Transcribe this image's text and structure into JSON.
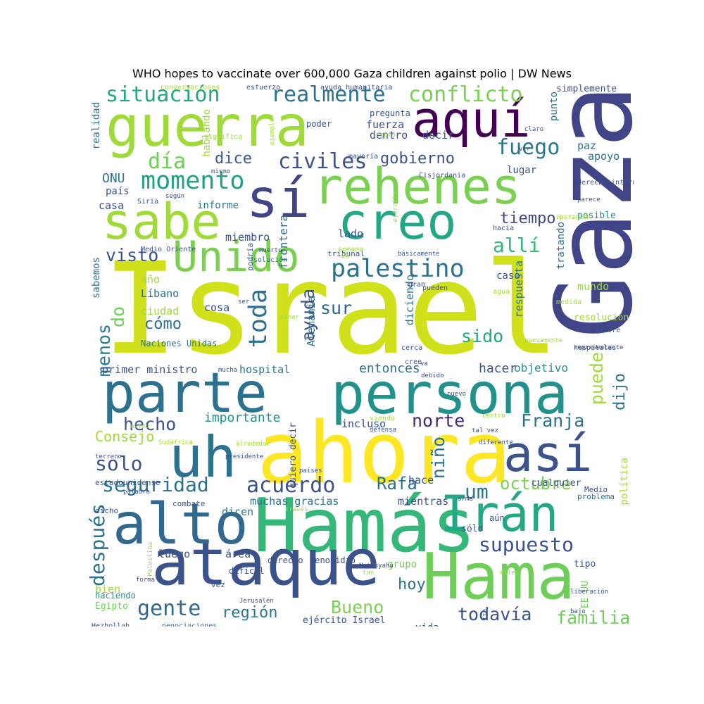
{
  "title": "WHO hopes to vaccinate over 600,000 Gaza children against polio | DW News",
  "words": [
    {
      "t": "Israel",
      "c": "#d0e11c"
    },
    {
      "t": "Gaza",
      "c": "#414487"
    },
    {
      "t": "ahora",
      "c": "#fde725"
    },
    {
      "t": "Hamás",
      "c": "#35b779"
    },
    {
      "t": "Hama",
      "c": "#6ece58"
    },
    {
      "t": "ataque",
      "c": "#3b528b"
    },
    {
      "t": "persona",
      "c": "#21918c"
    },
    {
      "t": "parte",
      "c": "#2c728e"
    },
    {
      "t": "guerra",
      "c": "#a0da39"
    },
    {
      "t": "aquí",
      "c": "#440154"
    },
    {
      "t": "rehenes",
      "c": "#7ad151"
    },
    {
      "t": "sabe",
      "c": "#a0da39"
    },
    {
      "t": "creo",
      "c": "#22a884"
    },
    {
      "t": "sí",
      "c": "#414487"
    },
    {
      "t": "Unido",
      "c": "#7ad151"
    },
    {
      "t": "uh",
      "c": "#2c728e"
    },
    {
      "t": "así",
      "c": "#3b528b"
    },
    {
      "t": "alto",
      "c": "#31688e"
    },
    {
      "t": "Irán",
      "c": "#22a884"
    },
    {
      "t": "palestino",
      "c": "#2c728e"
    },
    {
      "t": "realmente",
      "c": "#2c728e"
    },
    {
      "t": "conflicto",
      "c": "#7ad151"
    },
    {
      "t": "situación",
      "c": "#22a884"
    },
    {
      "t": "momento",
      "c": "#1fa187"
    },
    {
      "t": "civiles",
      "c": "#3b528b"
    },
    {
      "t": "fuego",
      "c": "#2a788e"
    },
    {
      "t": "gobierno",
      "c": "#3b528b"
    },
    {
      "t": "día",
      "c": "#6ece58"
    },
    {
      "t": "dice",
      "c": "#38598c"
    },
    {
      "t": "allí",
      "c": "#35b779"
    },
    {
      "t": "tiempo",
      "c": "#404688"
    },
    {
      "t": "visto",
      "c": "#3b528b"
    },
    {
      "t": "toda",
      "c": "#2c728e"
    },
    {
      "t": "ayuda",
      "c": "#3b528b"
    },
    {
      "t": "sur",
      "c": "#31688e"
    },
    {
      "t": "do",
      "c": "#6ece58"
    },
    {
      "t": "cómo",
      "c": "#2c728e"
    },
    {
      "t": "sido",
      "c": "#22a884"
    },
    {
      "t": "menos",
      "c": "#2a788e"
    },
    {
      "t": "hecho",
      "c": "#3b528b"
    },
    {
      "t": "Franja",
      "c": "#2c728e"
    },
    {
      "t": "norte",
      "c": "#482878"
    },
    {
      "t": "solo",
      "c": "#3b528b"
    },
    {
      "t": "seguridad",
      "c": "#2c728e"
    },
    {
      "t": "acuerdo",
      "c": "#3b528b"
    },
    {
      "t": "Rafa",
      "c": "#2c728e"
    },
    {
      "t": "octubre",
      "c": "#7ad151"
    },
    {
      "t": "um",
      "c": "#2c728e"
    },
    {
      "t": "supuesto",
      "c": "#3b528b"
    },
    {
      "t": "después",
      "c": "#2c728e"
    },
    {
      "t": "gente",
      "c": "#31688e"
    },
    {
      "t": "región",
      "c": "#2a788e"
    },
    {
      "t": "Bueno",
      "c": "#7ad151"
    },
    {
      "t": "hoy",
      "c": "#2c728e"
    },
    {
      "t": "todavía",
      "c": "#3b528b"
    },
    {
      "t": "familia",
      "c": "#6ece58"
    },
    {
      "t": "puede",
      "c": "#a0da39"
    },
    {
      "t": "dijo",
      "c": "#2c728e"
    },
    {
      "t": "importante",
      "c": "#21918c"
    },
    {
      "t": "entonces",
      "c": "#2c728e"
    },
    {
      "t": "hacer",
      "c": "#3b528b"
    },
    {
      "t": "objetivo",
      "c": "#21918c"
    },
    {
      "t": "Consejo",
      "c": "#a0da39"
    },
    {
      "t": "niño",
      "c": "#2c728e"
    },
    {
      "t": "incluso",
      "c": "#3b528b"
    },
    {
      "t": "primer ministro",
      "c": "#3b528b"
    },
    {
      "t": "hospital",
      "c": "#2c728e"
    },
    {
      "t": "ONU",
      "c": "#2c728e"
    },
    {
      "t": "país",
      "c": "#3b528b"
    },
    {
      "t": "casa",
      "c": "#3b528b"
    },
    {
      "t": "informe",
      "c": "#2a788e"
    },
    {
      "t": "miembro",
      "c": "#3b528b"
    },
    {
      "t": "lado",
      "c": "#3b528b"
    },
    {
      "t": "frontera",
      "c": "#2c728e"
    },
    {
      "t": "hablando",
      "c": "#a0da39"
    },
    {
      "t": "realidad",
      "c": "#2c728e"
    },
    {
      "t": "fuerza",
      "c": "#3b528b"
    },
    {
      "t": "dentro",
      "c": "#3b528b"
    },
    {
      "t": "decir",
      "c": "#3b528b"
    },
    {
      "t": "paz",
      "c": "#2c728e"
    },
    {
      "t": "apoyo",
      "c": "#2c728e"
    },
    {
      "t": "lugar",
      "c": "#3b528b"
    },
    {
      "t": "pregunta",
      "c": "#3b528b"
    },
    {
      "t": "poder",
      "c": "#3b528b"
    },
    {
      "t": "punto",
      "c": "#2c728e"
    },
    {
      "t": "simplemente",
      "c": "#3b528b"
    },
    {
      "t": "posible",
      "c": "#21918c"
    },
    {
      "t": "tratando",
      "c": "#2c728e"
    },
    {
      "t": "respuesta",
      "c": "#2c728e"
    },
    {
      "t": "mundo",
      "c": "#a0da39"
    },
    {
      "t": "resolución",
      "c": "#a0da39"
    },
    {
      "t": "caso",
      "c": "#3b528b"
    },
    {
      "t": "diciendo",
      "c": "#2c728e"
    },
    {
      "t": "Alemania",
      "c": "#2c728e"
    },
    {
      "t": "Líbano",
      "c": "#2c728e"
    },
    {
      "t": "ciudad",
      "c": "#a0da39"
    },
    {
      "t": "año",
      "c": "#a0da39"
    },
    {
      "t": "sabemos",
      "c": "#2c728e"
    },
    {
      "t": "cosa",
      "c": "#3b528b"
    },
    {
      "t": "Naciones Unidas",
      "c": "#2c728e"
    },
    {
      "t": "muchas gracias",
      "c": "#2c728e"
    },
    {
      "t": "mientras",
      "c": "#3b528b"
    },
    {
      "t": "hace",
      "c": "#3b528b"
    },
    {
      "t": "cualquier",
      "c": "#3b528b"
    },
    {
      "t": "problema",
      "c": "#2c728e"
    },
    {
      "t": "dicen",
      "c": "#2c728e"
    },
    {
      "t": "sólo",
      "c": "#3b528b"
    },
    {
      "t": "aún",
      "c": "#3b528b"
    },
    {
      "t": "luego",
      "c": "#3b528b"
    },
    {
      "t": "área",
      "c": "#3b528b"
    },
    {
      "t": "grupo",
      "c": "#6ece58"
    },
    {
      "t": "tipo",
      "c": "#3b528b"
    },
    {
      "t": "EE UU",
      "c": "#6ece58"
    },
    {
      "t": "derecho",
      "c": "#3b528b"
    },
    {
      "t": "genocidio",
      "c": "#3b528b"
    },
    {
      "t": "bien",
      "c": "#a0da39"
    },
    {
      "t": "haciendo",
      "c": "#21918c"
    },
    {
      "t": "Egipto",
      "c": "#6ece58"
    },
    {
      "t": "vez",
      "c": "#3b528b"
    },
    {
      "t": "vida",
      "c": "#3b528b"
    },
    {
      "t": "ejército Israel",
      "c": "#3b528b"
    },
    {
      "t": "Hezbollah",
      "c": "#3b528b"
    },
    {
      "t": "negociaciones",
      "c": "#2c728e"
    },
    {
      "t": "difícil",
      "c": "#3b528b"
    },
    {
      "t": "quiero decir",
      "c": "#3b528b"
    },
    {
      "t": "estadounidense",
      "c": "#3b528b"
    },
    {
      "t": "política",
      "c": "#a0da39"
    },
    {
      "t": "Medio",
      "c": "#3b528b"
    },
    {
      "t": "dicho",
      "c": "#3b528b"
    },
    {
      "t": "combate",
      "c": "#3b528b"
    },
    {
      "t": "tribunal",
      "c": "#3b528b"
    },
    {
      "t": "semana",
      "c": "#a0da39"
    },
    {
      "t": "podría",
      "c": "#3b528b"
    },
    {
      "t": "Medio Oriente",
      "c": "#3b528b"
    },
    {
      "t": "solución",
      "c": "#2c728e"
    },
    {
      "t": "pueden",
      "c": "#3b528b"
    },
    {
      "t": "gran",
      "c": "#3b528b"
    },
    {
      "t": "agua",
      "c": "#a0da39"
    },
    {
      "t": "medida",
      "c": "#a0da39"
    },
    {
      "t": "quiere",
      "c": "#3b528b"
    },
    {
      "t": "hospitales",
      "c": "#3b528b"
    },
    {
      "t": "representante",
      "c": "#3b528b"
    },
    {
      "t": "nuevamente",
      "c": "#a0da39"
    },
    {
      "t": "operación",
      "c": "#a0da39"
    },
    {
      "t": "hacia",
      "c": "#3b528b"
    },
    {
      "t": "parece",
      "c": "#3b528b"
    },
    {
      "t": "derecho internacional",
      "c": "#3b528b"
    },
    {
      "t": "Cisjordania",
      "c": "#3b528b"
    },
    {
      "t": "mayoría",
      "c": "#3b528b"
    },
    {
      "t": "seguro",
      "c": "#a0da39"
    },
    {
      "t": "ver",
      "c": "#3b528b"
    },
    {
      "t": "claro",
      "c": "#3b528b"
    },
    {
      "t": "significa",
      "c": "#a0da39"
    },
    {
      "t": "ejemplo",
      "c": "#a0da39"
    },
    {
      "t": "mismo",
      "c": "#3b528b"
    },
    {
      "t": "según",
      "c": "#3b528b"
    },
    {
      "t": "Siria",
      "c": "#3b528b"
    },
    {
      "t": "conversaciones",
      "c": "#a0da39"
    },
    {
      "t": "esfuerzo",
      "c": "#3b528b"
    },
    {
      "t": "ayuda humanitaria",
      "c": "#3b528b"
    },
    {
      "t": "ejército",
      "c": "#a0da39"
    },
    {
      "t": "básicamente",
      "c": "#3b528b"
    },
    {
      "t": "DW",
      "c": "#a0da39"
    },
    {
      "t": "muerto",
      "c": "#3b528b"
    },
    {
      "t": "ser",
      "c": "#3b528b"
    },
    {
      "t": "tener",
      "c": "#a0da39"
    },
    {
      "t": "cerca",
      "c": "#3b528b"
    },
    {
      "t": "cree",
      "c": "#3b528b"
    },
    {
      "t": "va",
      "c": "#3b528b"
    },
    {
      "t": "mucha",
      "c": "#3b528b"
    },
    {
      "t": "debido",
      "c": "#3b528b"
    },
    {
      "t": "nuevo",
      "c": "#3b528b"
    },
    {
      "t": "viendo",
      "c": "#a0da39"
    },
    {
      "t": "defensa",
      "c": "#3b528b"
    },
    {
      "t": "centro",
      "c": "#a0da39"
    },
    {
      "t": "tal vez",
      "c": "#3b528b"
    },
    {
      "t": "diferente",
      "c": "#3b528b"
    },
    {
      "t": "usted",
      "c": "#a0da39"
    },
    {
      "t": "Sudáfrica",
      "c": "#a0da39"
    },
    {
      "t": "alrededor",
      "c": "#a0da39"
    },
    {
      "t": "presidente",
      "c": "#3b528b"
    },
    {
      "t": "terreno",
      "c": "#3b528b"
    },
    {
      "t": "países",
      "c": "#3b528b"
    },
    {
      "t": "través",
      "c": "#a0da39"
    },
    {
      "t": "palabra",
      "c": "#3b528b"
    },
    {
      "t": "arma",
      "c": "#3b528b"
    },
    {
      "t": "bajo",
      "c": "#3b528b"
    },
    {
      "t": "liberación",
      "c": "#3b528b"
    },
    {
      "t": "fin",
      "c": "#3b528b"
    },
    {
      "t": "miles",
      "c": "#a0da39"
    },
    {
      "t": "Netanyahu",
      "c": "#3b528b"
    },
    {
      "t": "tan",
      "c": "#a0da39"
    },
    {
      "t": "Jerusalén",
      "c": "#3b528b"
    },
    {
      "t": "Palestina",
      "c": "#a0da39"
    },
    {
      "t": "forma",
      "c": "#3b528b"
    },
    {
      "t": "número",
      "c": "#3b528b"
    },
    {
      "t": "siempre",
      "c": "#a0da39"
    },
    {
      "t": "cabo",
      "c": "#a0da39"
    },
    {
      "t": "sino",
      "c": "#3b528b"
    }
  ]
}
